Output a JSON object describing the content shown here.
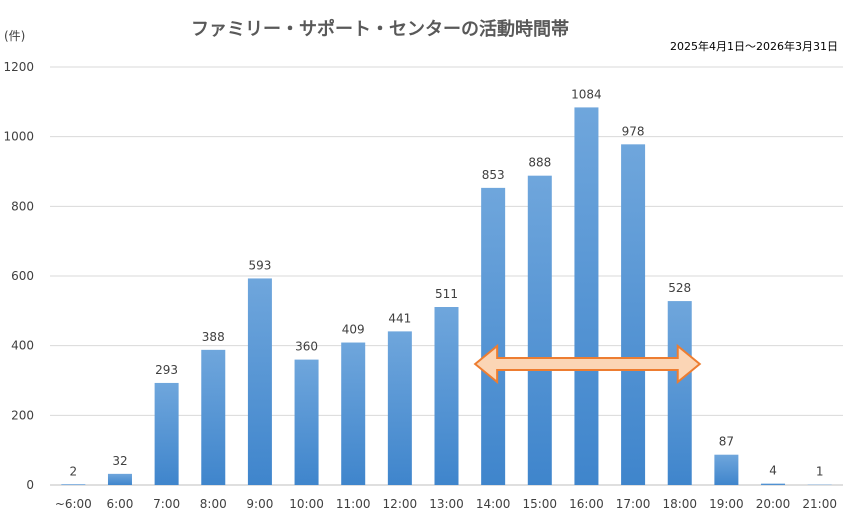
{
  "chart_data": {
    "type": "bar",
    "title": "ファミリー・サポート・センターの活動時間帯",
    "subtitle": "2025年4月1日〜2026年3月31日",
    "ylabel": "(件)",
    "xlabel": "",
    "categories": [
      "~6:00",
      "6:00",
      "7:00",
      "8:00",
      "9:00",
      "10:00",
      "11:00",
      "12:00",
      "13:00",
      "14:00",
      "15:00",
      "16:00",
      "17:00",
      "18:00",
      "19:00",
      "20:00",
      "21:00"
    ],
    "values": [
      2,
      32,
      293,
      388,
      593,
      360,
      409,
      441,
      511,
      853,
      888,
      1084,
      978,
      528,
      87,
      4,
      1
    ],
    "ylim": [
      0,
      1200
    ],
    "yticks": [
      0,
      200,
      400,
      600,
      800,
      1000,
      1200
    ],
    "grid": true,
    "legend": "none",
    "bar_color": "#4a90d9",
    "annotation": {
      "type": "double-arrow",
      "from_category": "14:00",
      "to_category": "18:00",
      "fill": "#fbd5b5",
      "stroke": "#ed7d31"
    }
  }
}
